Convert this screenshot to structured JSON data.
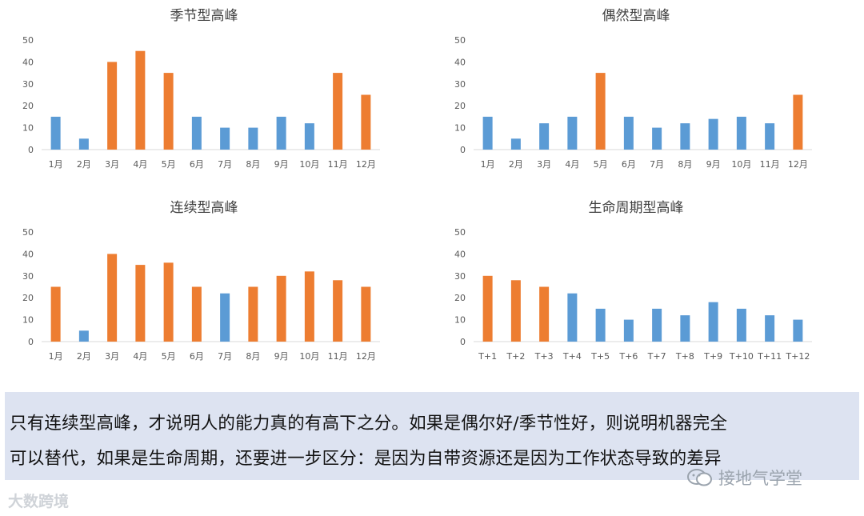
{
  "colors": {
    "blue": "#5b9bd5",
    "orange": "#ed7d31",
    "axis": "#d9d9d9",
    "tick": "#595959"
  },
  "chart_data": [
    {
      "type": "bar",
      "title": "季节型高峰",
      "categories": [
        "1月",
        "2月",
        "3月",
        "4月",
        "5月",
        "6月",
        "7月",
        "8月",
        "9月",
        "10月",
        "11月",
        "12月"
      ],
      "values": [
        15,
        5,
        40,
        45,
        35,
        15,
        10,
        10,
        15,
        12,
        35,
        25
      ],
      "highlight": [
        false,
        false,
        true,
        true,
        true,
        false,
        false,
        false,
        false,
        false,
        true,
        true
      ],
      "ylim": [
        0,
        50
      ],
      "yticks": [
        "0",
        "10",
        "20",
        "30",
        "40",
        "50"
      ],
      "grid": false
    },
    {
      "type": "bar",
      "title": "偶然型高峰",
      "categories": [
        "1月",
        "2月",
        "3月",
        "4月",
        "5月",
        "6月",
        "7月",
        "8月",
        "9月",
        "10月",
        "11月",
        "12月"
      ],
      "values": [
        15,
        5,
        12,
        15,
        35,
        15,
        10,
        12,
        14,
        15,
        12,
        25
      ],
      "highlight": [
        false,
        false,
        false,
        false,
        true,
        false,
        false,
        false,
        false,
        false,
        false,
        true
      ],
      "ylim": [
        0,
        50
      ],
      "yticks": [
        "0",
        "10",
        "20",
        "30",
        "40",
        "50"
      ],
      "grid": false
    },
    {
      "type": "bar",
      "title": "连续型高峰",
      "categories": [
        "1月",
        "2月",
        "3月",
        "4月",
        "5月",
        "6月",
        "7月",
        "8月",
        "9月",
        "10月",
        "11月",
        "12月"
      ],
      "values": [
        25,
        5,
        40,
        35,
        36,
        25,
        22,
        25,
        30,
        32,
        28,
        25
      ],
      "highlight": [
        true,
        false,
        true,
        true,
        true,
        true,
        false,
        true,
        true,
        true,
        true,
        true
      ],
      "ylim": [
        0,
        50
      ],
      "yticks": [
        "0",
        "10",
        "20",
        "30",
        "40",
        "50"
      ],
      "grid": false
    },
    {
      "type": "bar",
      "title": "生命周期型高峰",
      "categories": [
        "T+1",
        "T+2",
        "T+3",
        "T+4",
        "T+5",
        "T+6",
        "T+7",
        "T+8",
        "T+9",
        "T+10",
        "T+11",
        "T+12"
      ],
      "values": [
        30,
        28,
        25,
        22,
        15,
        10,
        15,
        12,
        18,
        15,
        12,
        10
      ],
      "highlight": [
        true,
        true,
        true,
        false,
        false,
        false,
        false,
        false,
        false,
        false,
        false,
        false
      ],
      "ylim": [
        0,
        50
      ],
      "yticks": [
        "0",
        "10",
        "20",
        "30",
        "40",
        "50"
      ],
      "grid": false
    }
  ],
  "note": {
    "line1": "只有连续型高峰，才说明人的能力真的有高下之分。如果是偶尔好/季节性好，则说明机器完全",
    "line2": "可以替代，如果是生命周期，还要进一步区分：是因为自带资源还是因为工作状态导致的差异"
  },
  "watermarks": {
    "left": "大数跨境",
    "right": "接地气学堂"
  }
}
